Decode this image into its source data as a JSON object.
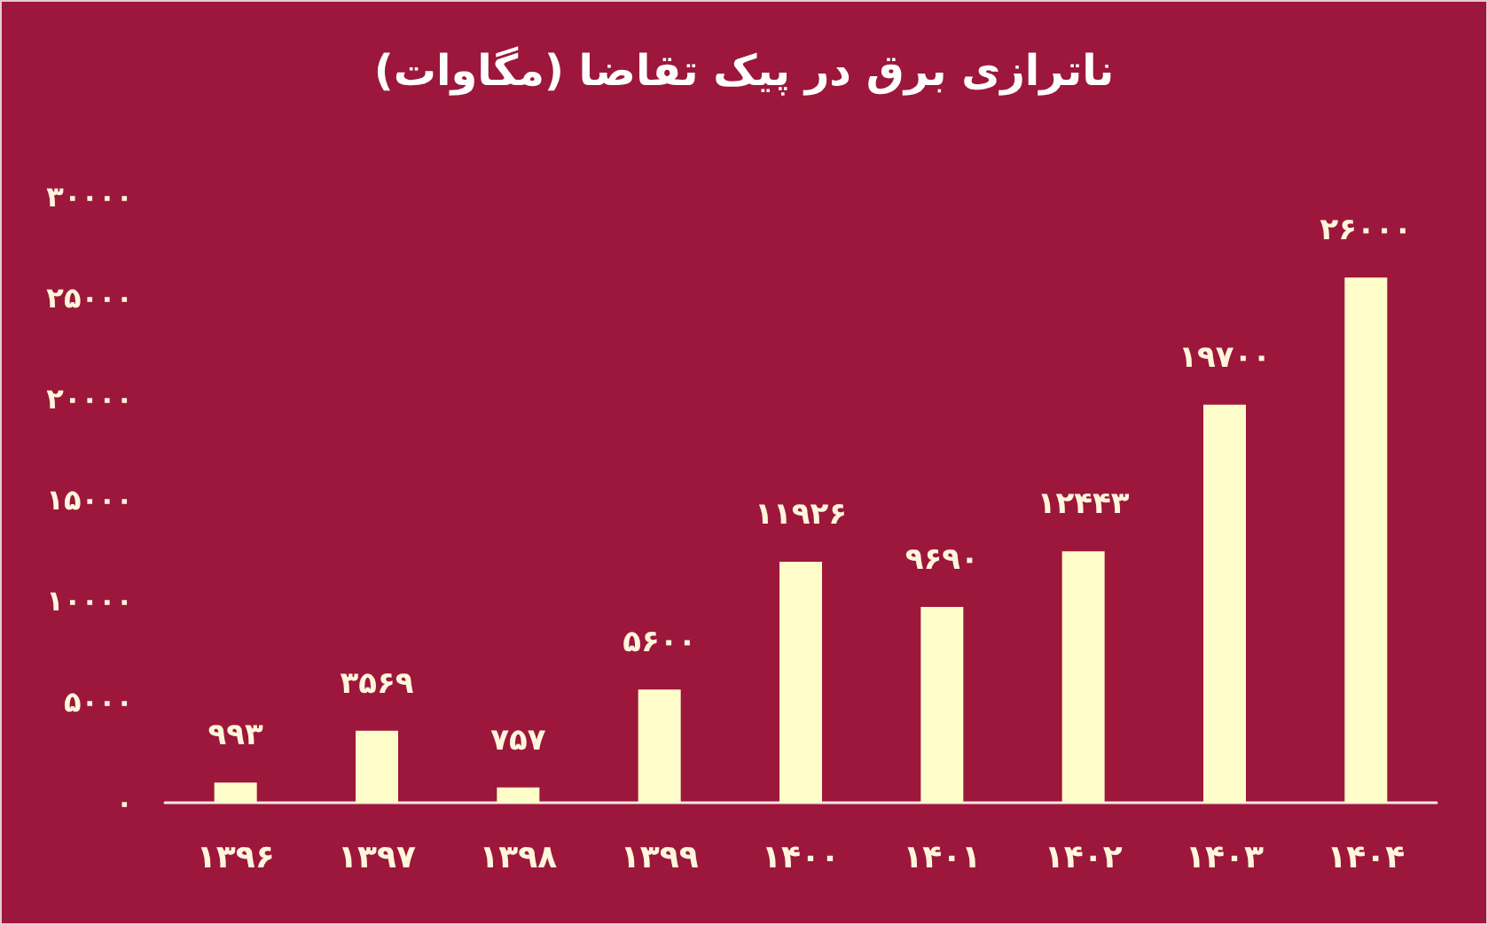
{
  "chart_data": {
    "type": "bar",
    "title": "ناترازی برق در پیک تقاضا (مگاوات)",
    "categories": [
      "۱۳۹۶",
      "۱۳۹۷",
      "۱۳۹۸",
      "۱۳۹۹",
      "۱۴۰۰",
      "۱۴۰۱",
      "۱۴۰۲",
      "۱۴۰۳",
      "۱۴۰۴"
    ],
    "values": [
      993,
      3569,
      757,
      5600,
      11926,
      9690,
      12443,
      19700,
      26000
    ],
    "value_labels": [
      "۹۹۳",
      "۳۵۶۹",
      "۷۵۷",
      "۵۶۰۰",
      "۱۱۹۲۶",
      "۹۶۹۰",
      "۱۲۴۴۳",
      "۱۹۷۰۰",
      "۲۶۰۰۰"
    ],
    "color": "#fffdc9",
    "ylim": [
      0,
      30000
    ],
    "yticks": [
      {
        "value": 0,
        "label": "۰"
      },
      {
        "value": 5000,
        "label": "۵۰۰۰"
      },
      {
        "value": 10000,
        "label": "۱۰۰۰۰"
      },
      {
        "value": 15000,
        "label": "۱۵۰۰۰"
      },
      {
        "value": 20000,
        "label": "۲۰۰۰۰"
      },
      {
        "value": 25000,
        "label": "۲۵۰۰۰"
      },
      {
        "value": 30000,
        "label": "۳۰۰۰۰"
      }
    ],
    "grid": false
  }
}
